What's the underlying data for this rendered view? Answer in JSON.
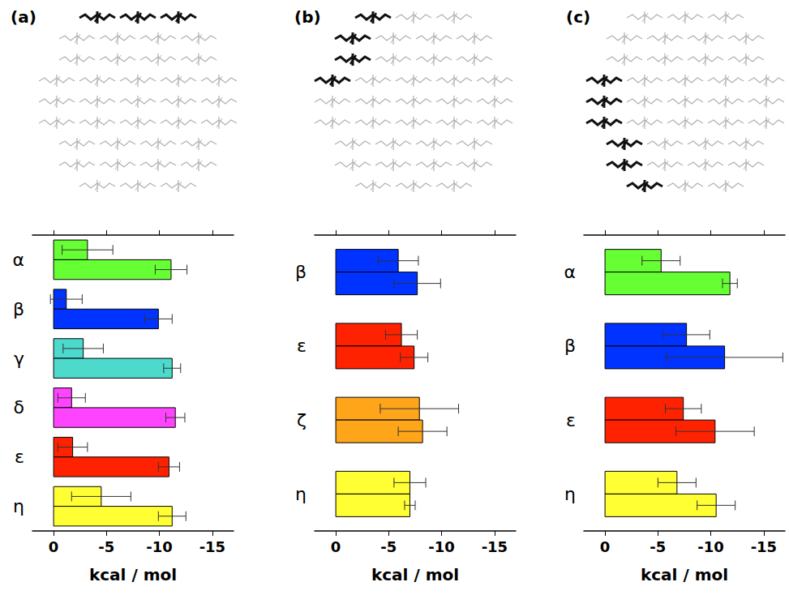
{
  "chart_data": [
    {
      "type": "bar",
      "title": "(a)",
      "orientation": "horizontal",
      "categories": [
        "α",
        "β",
        "γ",
        "δ",
        "ε",
        "η"
      ],
      "series": [
        {
          "values": [
            -3.2,
            -1.2,
            -2.8,
            -1.7,
            -1.8,
            -4.5
          ],
          "errors": [
            2.4,
            1.5,
            1.9,
            1.3,
            1.4,
            2.8
          ],
          "colors": [
            "#66ff33",
            "#0033ff",
            "#4dd9cc",
            "#ff44ff",
            "#ff2200",
            "#ffff33"
          ]
        },
        {
          "values": [
            -11.1,
            -9.9,
            -11.2,
            -11.5,
            -10.9,
            -11.2
          ],
          "errors": [
            1.5,
            1.3,
            0.8,
            0.9,
            1.0,
            1.3
          ],
          "colors": [
            "#66ff33",
            "#0033ff",
            "#4dd9cc",
            "#ff44ff",
            "#ff2200",
            "#ffff33"
          ]
        }
      ],
      "xlim": [
        2,
        -17
      ],
      "xticks": [
        0,
        -5,
        -10,
        -15
      ],
      "xlabel": "kcal / mol",
      "grid": false
    },
    {
      "type": "bar",
      "title": "(b)",
      "orientation": "horizontal",
      "categories": [
        "β",
        "ε",
        "ζ",
        "η"
      ],
      "series": [
        {
          "values": [
            -5.9,
            -6.2,
            -7.9,
            -7.0
          ],
          "errors": [
            1.9,
            1.5,
            3.7,
            1.5
          ],
          "colors": [
            "#0033ff",
            "#ff2200",
            "#ffa51a",
            "#ffff33"
          ]
        },
        {
          "values": [
            -7.7,
            -7.4,
            -8.2,
            -7.0
          ],
          "errors": [
            2.2,
            1.3,
            2.3,
            0.5
          ],
          "colors": [
            "#0033ff",
            "#ff2200",
            "#ffa51a",
            "#ffff33"
          ]
        }
      ],
      "xlim": [
        2,
        -17
      ],
      "xticks": [
        0,
        -5,
        -10,
        -15
      ],
      "xlabel": "kcal / mol",
      "grid": false
    },
    {
      "type": "bar",
      "title": "(c)",
      "orientation": "horizontal",
      "categories": [
        "α",
        "β",
        "ε",
        "η"
      ],
      "series": [
        {
          "values": [
            -5.3,
            -7.7,
            -7.4,
            -6.8
          ],
          "errors": [
            1.8,
            2.2,
            1.7,
            1.8
          ],
          "colors": [
            "#66ff33",
            "#0033ff",
            "#ff2200",
            "#ffff33"
          ]
        },
        {
          "values": [
            -11.8,
            -11.3,
            -10.4,
            -10.5
          ],
          "errors": [
            0.7,
            5.5,
            3.7,
            1.8
          ],
          "colors": [
            "#66ff33",
            "#0033ff",
            "#ff2200",
            "#ffff33"
          ]
        }
      ],
      "xlim": [
        2,
        -17
      ],
      "xticks": [
        0,
        -5,
        -10,
        -15
      ],
      "xlabel": "kcal / mol",
      "grid": false
    }
  ]
}
